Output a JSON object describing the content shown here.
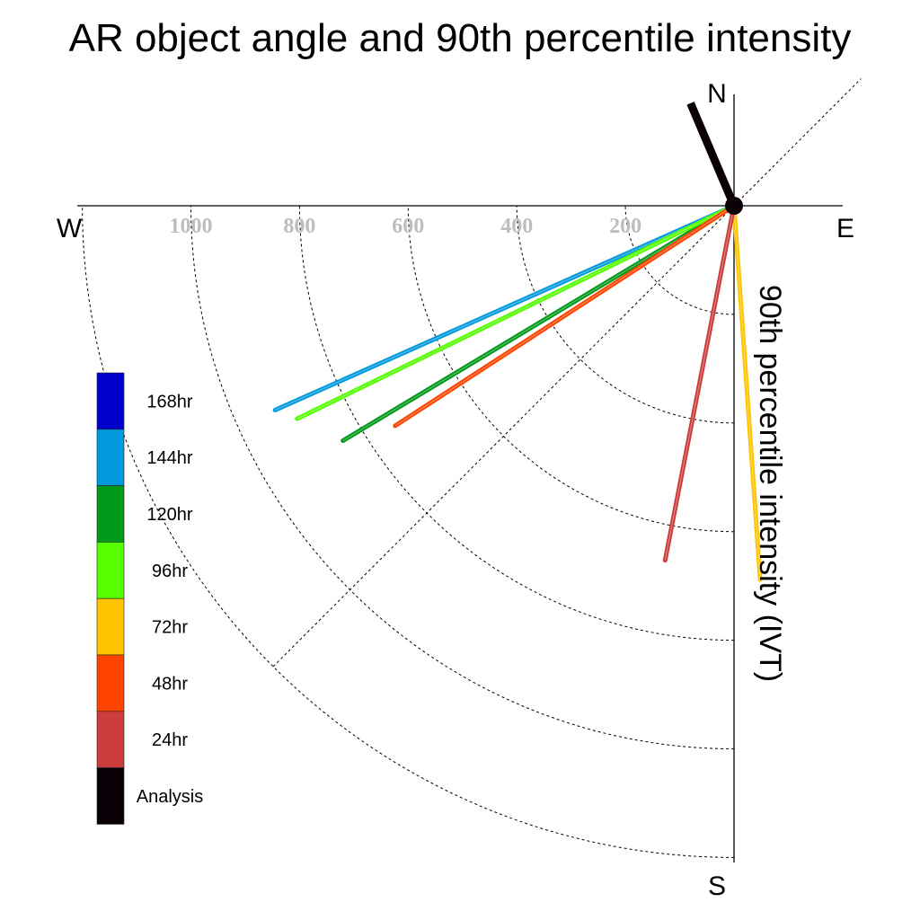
{
  "chart_data": {
    "type": "polar-vector",
    "title": "AR object angle and 90th percentile intensity",
    "ylabel": "90th percentile intensity (IVT)",
    "compass": {
      "north": "N",
      "south": "S",
      "east": "E",
      "west": "W"
    },
    "r_ticks": [
      200,
      400,
      600,
      800,
      1000
    ],
    "r_max": 1200,
    "grid": true,
    "legend_placement": "left",
    "series": [
      {
        "name": "168hr",
        "color": "#0000cc",
        "values": []
      },
      {
        "name": "144hr",
        "color": "#0099dd",
        "values": [
          {
            "angle_deg": 246,
            "intensity": 925
          }
        ]
      },
      {
        "name": "120hr",
        "color": "#009919",
        "values": [
          {
            "angle_deg": 239,
            "intensity": 840
          }
        ]
      },
      {
        "name": "96hr",
        "color": "#55ff00",
        "values": [
          {
            "angle_deg": 244,
            "intensity": 895
          }
        ]
      },
      {
        "name": "72hr",
        "color": "#ffc400",
        "values": [
          {
            "angle_deg": 176,
            "intensity": 690
          }
        ]
      },
      {
        "name": "48hr",
        "color": "#ff4400",
        "values": [
          {
            "angle_deg": 237,
            "intensity": 744
          }
        ]
      },
      {
        "name": "24hr",
        "color": "#cc3c3c",
        "values": [
          {
            "angle_deg": 191,
            "intensity": 665
          }
        ]
      },
      {
        "name": "Analysis",
        "color": "#0a0008",
        "values": [
          {
            "angle_deg": 337,
            "intensity": 205
          }
        ]
      }
    ]
  }
}
